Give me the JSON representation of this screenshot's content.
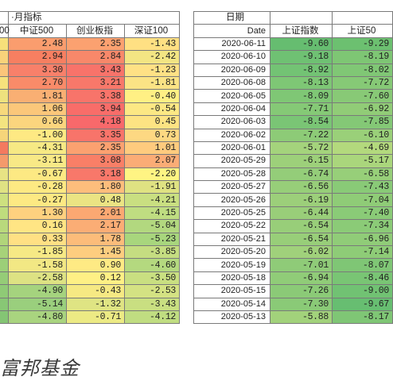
{
  "left_table": {
    "title": "·月指标",
    "headers": [
      "00",
      "中证500",
      "创业板指",
      "深证100"
    ],
    "rows": [
      [
        "2.48",
        "2.35",
        "-1.43"
      ],
      [
        "2.94",
        "2.84",
        "-2.42"
      ],
      [
        "3.30",
        "3.43",
        "-1.23"
      ],
      [
        "2.70",
        "3.21",
        "-1.81"
      ],
      [
        "1.81",
        "3.38",
        "-0.40"
      ],
      [
        "1.06",
        "3.94",
        "-0.54"
      ],
      [
        "0.66",
        "4.18",
        "0.45"
      ],
      [
        "-1.00",
        "3.35",
        "0.73"
      ],
      [
        "-4.31",
        "2.35",
        "1.01"
      ],
      [
        "-3.11",
        "3.08",
        "2.07"
      ],
      [
        "-0.67",
        "3.18",
        "-2.20"
      ],
      [
        "-0.28",
        "1.80",
        "-1.91"
      ],
      [
        "-0.27",
        "0.48",
        "-4.21"
      ],
      [
        "1.30",
        "2.01",
        "-4.15"
      ],
      [
        "0.16",
        "2.17",
        "-5.04"
      ],
      [
        "0.33",
        "1.78",
        "-5.23"
      ],
      [
        "-1.85",
        "1.45",
        "-3.85"
      ],
      [
        "-1.58",
        "0.90",
        "-4.60"
      ],
      [
        "-2.58",
        "0.12",
        "-3.50"
      ],
      [
        "-4.90",
        "-0.43",
        "-2.53"
      ],
      [
        "-5.14",
        "-1.32",
        "-3.43"
      ],
      [
        "-4.80",
        "-0.71",
        "-4.12"
      ]
    ],
    "stub_colors": [
      "#f7e07a",
      "#f9d27a",
      "#fbc57a",
      "#f6e27c",
      "#eee27e",
      "#f7d97c",
      "#f3e480",
      "#f6d57a",
      "#f37a5f",
      "#f49a6b",
      "#e8e384",
      "#dfe283",
      "#cde07f",
      "#bfdc7d",
      "#b9d97c",
      "#b1d57a",
      "#a7d279",
      "#9ccf78",
      "#95cc77",
      "#8fca76",
      "#88c775",
      "#84c574"
    ],
    "row_colors": [
      [
        "#fa9d6e",
        "#fba170",
        "#ffe083"
      ],
      [
        "#f77f61",
        "#f8886a",
        "#f3e583"
      ],
      [
        "#f8806a",
        "#f8736a",
        "#ffe185"
      ],
      [
        "#f98b69",
        "#f8786a",
        "#fbe385"
      ],
      [
        "#f9af73",
        "#f8746a",
        "#fff084"
      ],
      [
        "#fbc77a",
        "#f86d69",
        "#fce884"
      ],
      [
        "#fbd57e",
        "#f8696b",
        "#fde383"
      ],
      [
        "#fee983",
        "#f8746a",
        "#fdd882"
      ],
      [
        "#f6e984",
        "#fba170",
        "#fecb7e"
      ],
      [
        "#f8e986",
        "#f97f67",
        "#fbac76"
      ],
      [
        "#fde983",
        "#f8786a",
        "#fff483"
      ],
      [
        "#fde983",
        "#fdbd7c",
        "#dfe282"
      ],
      [
        "#fde983",
        "#ebe483",
        "#c9df81"
      ],
      [
        "#fed17f",
        "#fba872",
        "#bfdd81"
      ],
      [
        "#ffe584",
        "#fbad75",
        "#b2d87f"
      ],
      [
        "#ffe084",
        "#fcbc7a",
        "#a8d67d"
      ],
      [
        "#f6e985",
        "#fdcd7f",
        "#c5dd81"
      ],
      [
        "#f2e884",
        "#feea84",
        "#b4d97f"
      ],
      [
        "#dde283",
        "#fef085",
        "#c9df81"
      ],
      [
        "#a5d37e",
        "#f6e983",
        "#d4e283"
      ],
      [
        "#9acf7d",
        "#dfe483",
        "#c9df81"
      ],
      [
        "#a9d47f",
        "#ecea84",
        "#c0dd81"
      ]
    ]
  },
  "right_table": {
    "top_header": "日期",
    "headers": [
      "Date",
      "上证指数",
      "上证50"
    ],
    "rows": [
      [
        "2020-06-11",
        "-9.60",
        "-9.29"
      ],
      [
        "2020-06-10",
        "-9.18",
        "-8.19"
      ],
      [
        "2020-06-09",
        "-8.92",
        "-8.02"
      ],
      [
        "2020-06-08",
        "-8.13",
        "-7.72"
      ],
      [
        "2020-06-05",
        "-8.09",
        "-7.60"
      ],
      [
        "2020-06-04",
        "-7.71",
        "-6.92"
      ],
      [
        "2020-06-03",
        "-8.54",
        "-7.85"
      ],
      [
        "2020-06-02",
        "-7.22",
        "-6.10"
      ],
      [
        "2020-06-01",
        "-5.72",
        "-4.69"
      ],
      [
        "2020-05-29",
        "-6.15",
        "-5.17"
      ],
      [
        "2020-05-28",
        "-6.74",
        "-6.58"
      ],
      [
        "2020-05-27",
        "-6.56",
        "-7.43"
      ],
      [
        "2020-05-26",
        "-6.19",
        "-7.04"
      ],
      [
        "2020-05-25",
        "-6.44",
        "-7.40"
      ],
      [
        "2020-05-22",
        "-6.54",
        "-7.34"
      ],
      [
        "2020-05-21",
        "-6.54",
        "-6.96"
      ],
      [
        "2020-05-20",
        "-6.02",
        "-7.14"
      ],
      [
        "2020-05-19",
        "-7.01",
        "-8.07"
      ],
      [
        "2020-05-18",
        "-6.94",
        "-8.46"
      ],
      [
        "2020-05-15",
        "-7.26",
        "-9.00"
      ],
      [
        "2020-05-14",
        "-7.30",
        "-9.67"
      ],
      [
        "2020-05-13",
        "-5.88",
        "-8.17"
      ]
    ],
    "row_colors": [
      [
        "#66bd70",
        "#6cc070"
      ],
      [
        "#6fc173",
        "#7ec674"
      ],
      [
        "#73c374",
        "#80c775"
      ],
      [
        "#7ec775",
        "#86c976"
      ],
      [
        "#7fc775",
        "#88c976"
      ],
      [
        "#85c976",
        "#91cc77"
      ],
      [
        "#7ac575",
        "#84c876"
      ],
      [
        "#8dcb77",
        "#9ad079"
      ],
      [
        "#a4d37c",
        "#b3d97d"
      ],
      [
        "#9dd07a",
        "#aad67c"
      ],
      [
        "#94cd79",
        "#97cf79"
      ],
      [
        "#97ce79",
        "#89ca77"
      ],
      [
        "#9ccf7a",
        "#8fcc77"
      ],
      [
        "#99ce79",
        "#8acb77"
      ],
      [
        "#98ce79",
        "#8bcb77"
      ],
      [
        "#98ce79",
        "#90cc78"
      ],
      [
        "#a0d17b",
        "#8ecc77"
      ],
      [
        "#8fcb78",
        "#7fc675"
      ],
      [
        "#90cc78",
        "#79c574"
      ],
      [
        "#8bca77",
        "#71c273"
      ],
      [
        "#8aca77",
        "#67be71"
      ],
      [
        "#a2d27b",
        "#7fc675"
      ]
    ]
  },
  "watermark": "富邦基金"
}
